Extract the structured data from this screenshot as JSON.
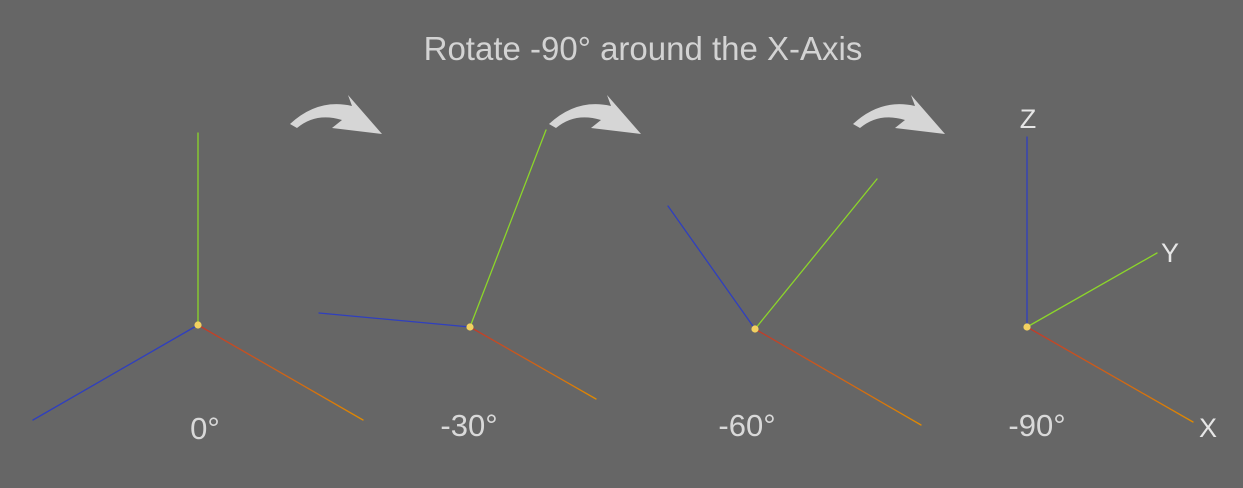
{
  "title": "Rotate -90° around the X-Axis",
  "steps": [
    {
      "angle_label": "0°"
    },
    {
      "angle_label": "-30°"
    },
    {
      "angle_label": "-60°"
    },
    {
      "angle_label": "-90°",
      "axis_labels": {
        "x": "X",
        "y": "Y",
        "z": "Z"
      }
    }
  ],
  "colors": {
    "background": "#666666",
    "x_axis_start": "#c0392b",
    "x_axis_end": "#e08a00",
    "y_axis_start": "#2f3fbf",
    "y_axis_end": "#2a63c8",
    "z_axis": "#8cd62a",
    "origin": "#f2d060",
    "arrow": "#d6d6d6"
  },
  "icons": {
    "arrow": "curved-arrow-right-icon",
    "origin": "origin-dot-icon"
  }
}
